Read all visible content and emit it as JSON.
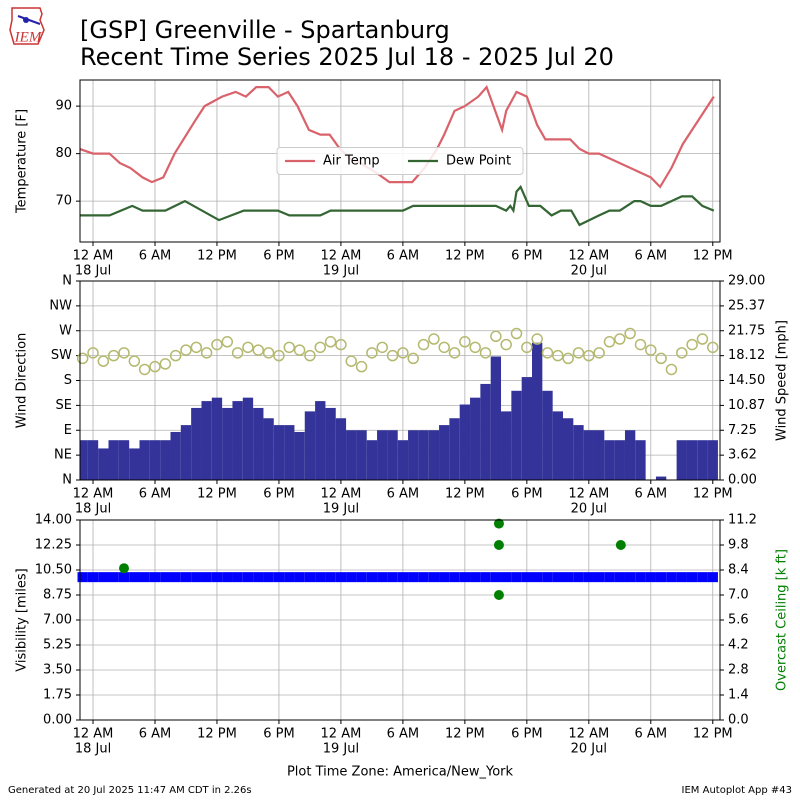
{
  "header": {
    "title": "[GSP] Greenville - Spartanburg",
    "subtitle": "Recent Time Series 2025 Jul 18 - 2025 Jul 20",
    "logo_text": "IEM"
  },
  "footer": {
    "generated": "Generated at 20 Jul 2025 11:47 AM CDT in 2.26s",
    "app": "IEM Autoplot App #43"
  },
  "chart_data": [
    {
      "type": "line",
      "ylabel": "Temperature [F]",
      "grid": true,
      "legend": "center",
      "xlim": [
        -1.26,
        60.7
      ],
      "xticks": [
        {
          "value": 0,
          "label": "12 AM"
        },
        {
          "value": 6,
          "label": "6 AM"
        },
        {
          "value": 12,
          "label": "12 PM"
        },
        {
          "value": 18,
          "label": "6 PM"
        },
        {
          "value": 24,
          "label": "12 AM"
        },
        {
          "value": 30,
          "label": "6 AM"
        },
        {
          "value": 36,
          "label": "12 PM"
        },
        {
          "value": 42,
          "label": "6 PM"
        },
        {
          "value": 48,
          "label": "12 AM"
        },
        {
          "value": 54,
          "label": "6 AM"
        },
        {
          "value": 60,
          "label": "12 PM"
        }
      ],
      "xtick_days": [
        {
          "value": 0,
          "label": "18 Jul"
        },
        {
          "value": 24,
          "label": "19 Jul"
        },
        {
          "value": 48,
          "label": "20 Jul"
        }
      ],
      "ylim": [
        61.4,
        95.5
      ],
      "yticks": [
        70,
        80,
        90
      ],
      "series": [
        {
          "name": "Air Temp",
          "color": "#d9626b",
          "x": [
            -1.3,
            0,
            1.6,
            2.6,
            3.6,
            4.8,
            5.7,
            6.8,
            7.9,
            9.9,
            10.8,
            12.5,
            13.8,
            14.8,
            15.8,
            17,
            17.9,
            18.9,
            19.8,
            20.9,
            22,
            22.9,
            23.9,
            24.9,
            25.9,
            27.4,
            28.7,
            30.9,
            32.1,
            33.3,
            34,
            35,
            36,
            37.3,
            38.1,
            39.6,
            40,
            41,
            42,
            43,
            43.8,
            46.2,
            47.1,
            48,
            49,
            54,
            54.9,
            56,
            57.1,
            58.3,
            60.1
          ],
          "values": [
            81,
            80,
            80,
            78,
            77,
            75,
            74,
            75,
            80,
            87,
            90,
            92,
            93,
            92,
            94,
            94,
            92,
            93,
            90,
            85,
            84,
            84,
            81,
            79,
            78,
            76,
            74,
            74,
            77,
            81,
            84,
            89,
            90,
            92,
            94,
            85,
            89,
            93,
            92,
            86,
            83,
            83,
            81,
            80,
            80,
            75,
            73,
            77,
            82,
            86,
            92
          ]
        },
        {
          "name": "Dew Point",
          "color": "#336633",
          "x": [
            -1.3,
            1.6,
            3.8,
            4.8,
            7,
            8.9,
            12.2,
            14.6,
            17.9,
            19,
            22,
            23,
            30,
            31,
            39,
            40,
            40.4,
            40.7,
            41,
            41.4,
            42.2,
            43.3,
            44.4,
            45.3,
            46.3,
            47.1,
            49,
            50,
            51,
            52.4,
            53,
            54,
            55,
            57,
            58,
            59,
            60.1
          ],
          "values": [
            67,
            67,
            69,
            68,
            68,
            70,
            66,
            68,
            68,
            67,
            67,
            68,
            68,
            69,
            69,
            68,
            69,
            68,
            72,
            73,
            69,
            69,
            67,
            68,
            68,
            65,
            67,
            68,
            68,
            70,
            70,
            69,
            69,
            71,
            71,
            69,
            68
          ]
        }
      ]
    },
    {
      "type": "scatter",
      "ylabel": "Wind Direction",
      "y2label": "Wind Speed [mph]",
      "grid": true,
      "xlim": [
        -1.26,
        60.7
      ],
      "xticks": [
        {
          "value": 0,
          "label": "12 AM"
        },
        {
          "value": 6,
          "label": "6 AM"
        },
        {
          "value": 12,
          "label": "12 PM"
        },
        {
          "value": 18,
          "label": "6 PM"
        },
        {
          "value": 24,
          "label": "12 AM"
        },
        {
          "value": 30,
          "label": "6 AM"
        },
        {
          "value": 36,
          "label": "12 PM"
        },
        {
          "value": 42,
          "label": "6 PM"
        },
        {
          "value": 48,
          "label": "12 AM"
        },
        {
          "value": 54,
          "label": "6 AM"
        },
        {
          "value": 60,
          "label": "12 PM"
        }
      ],
      "xtick_days": [
        {
          "value": 0,
          "label": "18 Jul"
        },
        {
          "value": 24,
          "label": "19 Jul"
        },
        {
          "value": 48,
          "label": "20 Jul"
        }
      ],
      "ylim": [
        0,
        360
      ],
      "yticks": [
        {
          "value": 0,
          "label": "N"
        },
        {
          "value": 45,
          "label": "NE"
        },
        {
          "value": 90,
          "label": "E"
        },
        {
          "value": 135,
          "label": "SE"
        },
        {
          "value": 180,
          "label": "S"
        },
        {
          "value": 225,
          "label": "SW"
        },
        {
          "value": 270,
          "label": "W"
        },
        {
          "value": 315,
          "label": "NW"
        },
        {
          "value": 360,
          "label": "N"
        }
      ],
      "y2lim": [
        0,
        29
      ],
      "y2ticks": [
        {
          "value": 0,
          "label": "0.00"
        },
        {
          "value": 3.62,
          "label": "3.62"
        },
        {
          "value": 7.25,
          "label": "7.25"
        },
        {
          "value": 10.87,
          "label": "10.87"
        },
        {
          "value": 14.5,
          "label": "14.50"
        },
        {
          "value": 18.12,
          "label": "18.12"
        },
        {
          "value": 21.75,
          "label": "21.75"
        },
        {
          "value": 25.37,
          "label": "25.37"
        },
        {
          "value": 29,
          "label": "29.00"
        }
      ],
      "series": [
        {
          "type": "bar",
          "axis": "y2",
          "color": "#333399",
          "x": [
            -1,
            0,
            1,
            2,
            3,
            4,
            5,
            6,
            7,
            8,
            9,
            10,
            11,
            12,
            13,
            14,
            15,
            16,
            17,
            18,
            19,
            20,
            21,
            22,
            23,
            24,
            25,
            26,
            27,
            28,
            29,
            30,
            31,
            32,
            33,
            34,
            35,
            36,
            37,
            38,
            39,
            40,
            41,
            42,
            43,
            44,
            45,
            46,
            47,
            48,
            49,
            50,
            51,
            52,
            53,
            54,
            55,
            56,
            57,
            58,
            59,
            60
          ],
          "values": [
            5.8,
            5.8,
            4.6,
            5.8,
            5.8,
            4.6,
            5.8,
            5.8,
            5.8,
            7,
            8,
            10.5,
            11.5,
            12,
            10.5,
            11.5,
            12,
            10.5,
            9,
            8,
            8,
            7,
            10,
            11.5,
            10.5,
            9,
            7.25,
            7.25,
            5.8,
            7.25,
            7.25,
            5.8,
            7.25,
            7.25,
            7.25,
            8,
            9,
            11,
            12,
            14,
            18,
            10,
            13,
            15,
            20,
            13,
            10,
            9,
            8,
            7.25,
            7.25,
            5.8,
            5.8,
            7.25,
            5.8,
            0,
            0.5,
            0,
            5.8,
            5.8,
            5.8,
            5.8
          ]
        },
        {
          "type": "scatter",
          "marker": "open circle",
          "color": "#b5b96f",
          "x": [
            -1,
            0,
            1,
            2,
            3,
            4,
            5,
            6,
            7,
            8,
            9,
            10,
            11,
            12,
            13,
            14,
            15,
            16,
            17,
            18,
            19,
            20,
            21,
            22,
            23,
            24,
            25,
            26,
            27,
            28,
            29,
            30,
            31,
            32,
            33,
            34,
            35,
            36,
            37,
            38,
            39,
            40,
            41,
            42,
            43,
            44,
            45,
            46,
            47,
            48,
            49,
            50,
            51,
            52,
            53,
            54,
            55,
            56,
            57,
            58,
            59,
            60
          ],
          "values": [
            220,
            230,
            215,
            225,
            230,
            215,
            200,
            205,
            210,
            225,
            235,
            240,
            230,
            245,
            250,
            230,
            240,
            235,
            230,
            225,
            240,
            235,
            225,
            240,
            250,
            245,
            215,
            205,
            230,
            240,
            225,
            230,
            220,
            245,
            255,
            240,
            230,
            250,
            240,
            230,
            260,
            245,
            265,
            240,
            255,
            230,
            225,
            220,
            230,
            225,
            230,
            250,
            255,
            265,
            245,
            235,
            220,
            200,
            230,
            245,
            255,
            240
          ]
        }
      ]
    },
    {
      "type": "scatter",
      "ylabel": "Visibility [miles]",
      "y2label": "Overcast Ceiling [k ft]",
      "y2label_color": "green",
      "grid": true,
      "xlabel": "Plot Time Zone: America/New_York",
      "xlim": [
        -1.26,
        60.7
      ],
      "xticks": [
        {
          "value": 0,
          "label": "12 AM"
        },
        {
          "value": 6,
          "label": "6 AM"
        },
        {
          "value": 12,
          "label": "12 PM"
        },
        {
          "value": 18,
          "label": "6 PM"
        },
        {
          "value": 24,
          "label": "12 AM"
        },
        {
          "value": 30,
          "label": "6 AM"
        },
        {
          "value": 36,
          "label": "12 PM"
        },
        {
          "value": 42,
          "label": "6 PM"
        },
        {
          "value": 48,
          "label": "12 AM"
        },
        {
          "value": 54,
          "label": "6 AM"
        },
        {
          "value": 60,
          "label": "12 PM"
        }
      ],
      "xtick_days": [
        {
          "value": 0,
          "label": "18 Jul"
        },
        {
          "value": 24,
          "label": "19 Jul"
        },
        {
          "value": 48,
          "label": "20 Jul"
        }
      ],
      "ylim": [
        0,
        14
      ],
      "yticks": [
        {
          "value": 0,
          "label": "0.00"
        },
        {
          "value": 1.75,
          "label": "1.75"
        },
        {
          "value": 3.5,
          "label": "3.50"
        },
        {
          "value": 5.25,
          "label": "5.25"
        },
        {
          "value": 7,
          "label": "7.00"
        },
        {
          "value": 8.75,
          "label": "8.75"
        },
        {
          "value": 10.5,
          "label": "10.50"
        },
        {
          "value": 12.25,
          "label": "12.25"
        },
        {
          "value": 14,
          "label": "14.00"
        }
      ],
      "y2lim": [
        0,
        11.2
      ],
      "y2ticks": [
        {
          "value": 0,
          "label": "0.0"
        },
        {
          "value": 1.4,
          "label": "1.4"
        },
        {
          "value": 2.8,
          "label": "2.8"
        },
        {
          "value": 4.2,
          "label": "4.2"
        },
        {
          "value": 5.6,
          "label": "5.6"
        },
        {
          "value": 7,
          "label": "7.0"
        },
        {
          "value": 8.4,
          "label": "8.4"
        },
        {
          "value": 9.8,
          "label": "9.8"
        },
        {
          "value": 11.2,
          "label": "11.2"
        }
      ],
      "series": [
        {
          "type": "scatter",
          "marker": "square",
          "color": "#0000ff",
          "x": [
            -1,
            0,
            1,
            2,
            3,
            4,
            5,
            6,
            7,
            8,
            9,
            10,
            11,
            12,
            13,
            14,
            15,
            16,
            17,
            18,
            19,
            20,
            21,
            22,
            23,
            24,
            25,
            26,
            27,
            28,
            29,
            30,
            31,
            32,
            33,
            34,
            35,
            36,
            37,
            38,
            39,
            40,
            41,
            42,
            43,
            44,
            45,
            46,
            47,
            48,
            49,
            50,
            51,
            52,
            53,
            54,
            55,
            56,
            57,
            58,
            59,
            60
          ],
          "values": [
            10,
            10,
            10,
            10,
            10,
            10,
            10,
            10,
            10,
            10,
            10,
            10,
            10,
            10,
            10,
            10,
            10,
            10,
            10,
            10,
            10,
            10,
            10,
            10,
            10,
            10,
            10,
            10,
            10,
            10,
            10,
            10,
            10,
            10,
            10,
            10,
            10,
            10,
            10,
            10,
            10,
            10,
            10,
            10,
            10,
            10,
            10,
            10,
            10,
            10,
            10,
            10,
            10,
            10,
            10,
            10,
            10,
            10,
            10,
            10,
            10,
            10
          ]
        },
        {
          "type": "scatter",
          "marker": "circle",
          "axis": "y2",
          "color": "#008000",
          "x": [
            3,
            39.3,
            39.3,
            39.3,
            51.1
          ],
          "values": [
            8.5,
            11.0,
            9.8,
            7.0,
            9.8
          ]
        }
      ]
    }
  ]
}
